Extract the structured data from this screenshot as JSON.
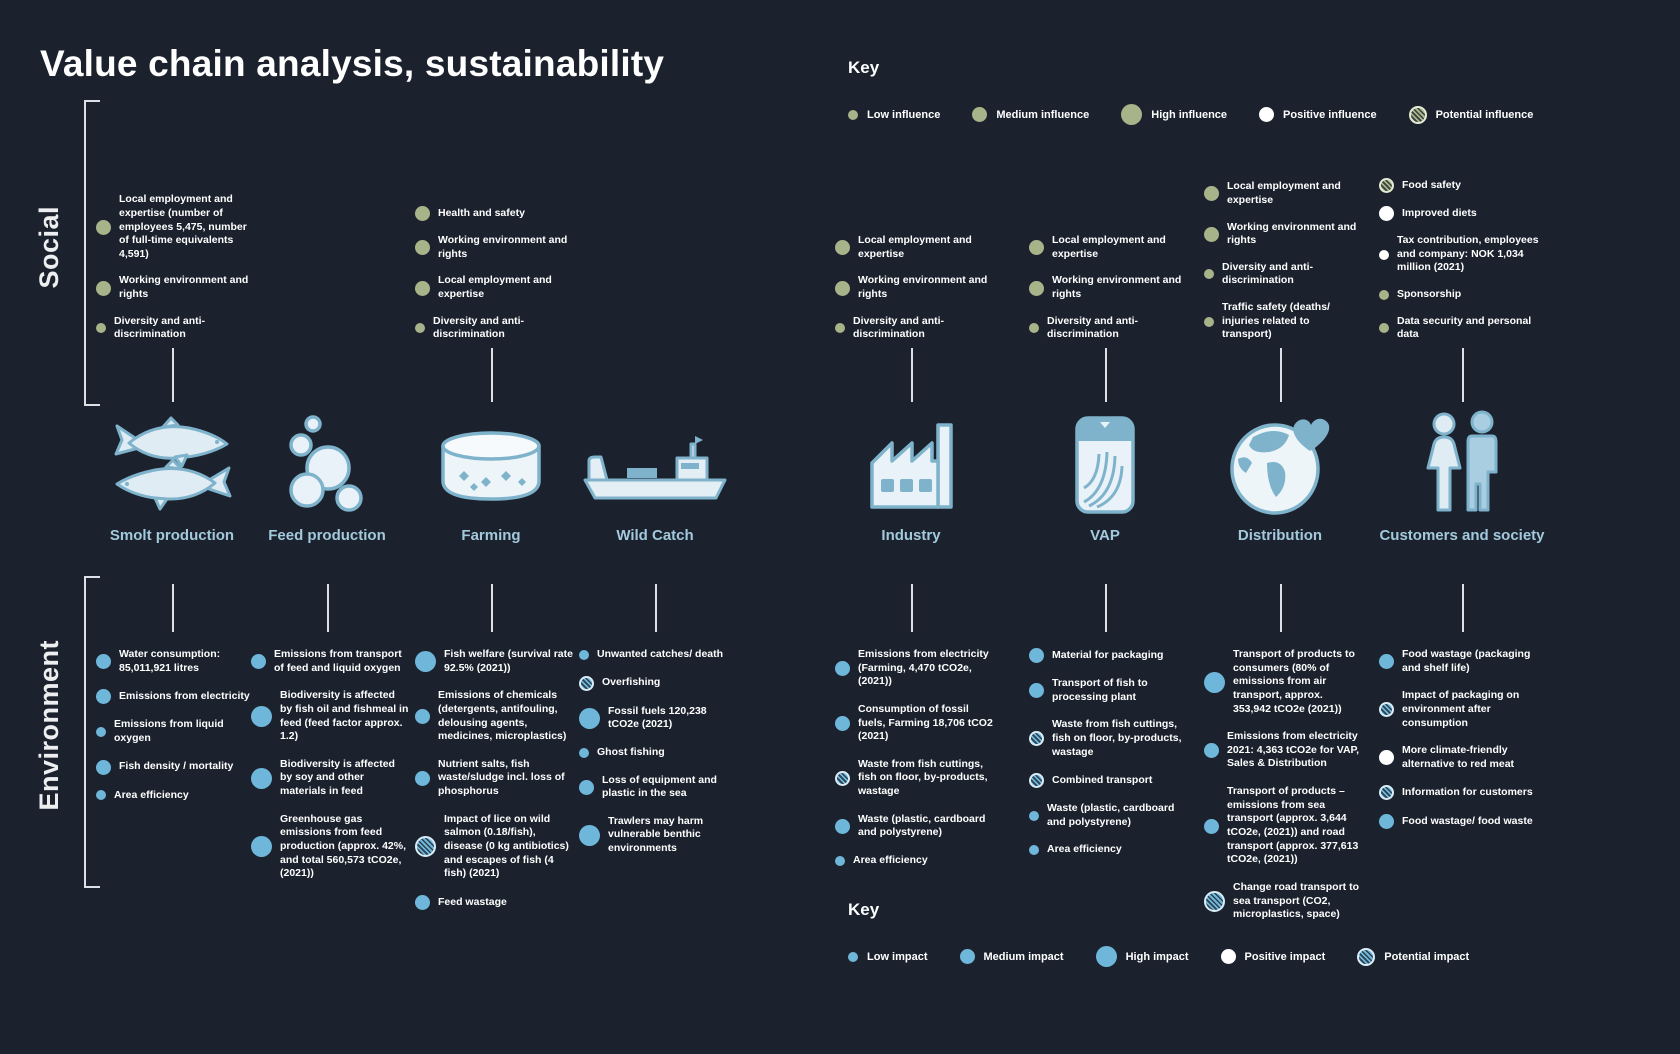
{
  "title": "Value chain analysis, sustainability",
  "rows": {
    "social_label": "Social",
    "environment_label": "Environment"
  },
  "colors": {
    "background": "#1b222d",
    "influence_olive": "#a7b388",
    "impact_blue": "#6fb7da",
    "positive_white": "#ffffff",
    "stage_label_blue": "#a3c9dd",
    "line_white": "#dde1e5",
    "icon_fill": "#e9f2f8",
    "icon_stroke": "#7fb3cc"
  },
  "keys": {
    "influence": {
      "heading": "Key",
      "items": [
        {
          "label": "Low influence",
          "type": "low"
        },
        {
          "label": "Medium influence",
          "type": "medium"
        },
        {
          "label": "High influence",
          "type": "high"
        },
        {
          "label": "Positive influence",
          "type": "positive"
        },
        {
          "label": "Potential influence",
          "type": "potential"
        }
      ]
    },
    "impact": {
      "heading": "Key",
      "items": [
        {
          "label": "Low impact",
          "type": "low"
        },
        {
          "label": "Medium impact",
          "type": "medium"
        },
        {
          "label": "High impact",
          "type": "high"
        },
        {
          "label": "Positive impact",
          "type": "positive"
        },
        {
          "label": "Potential impact",
          "type": "potential"
        }
      ]
    }
  },
  "stages": [
    {
      "name": "Smolt production",
      "icon": "fish-icon",
      "social": [
        {
          "text": "Local employment and expertise (number of employees 5,475, number of full-time equivalents 4,591)",
          "size": "medium"
        },
        {
          "text": "Working environment and rights",
          "size": "medium"
        },
        {
          "text": "Diversity and anti-discrimination",
          "size": "low"
        }
      ],
      "environment": [
        {
          "text": "Water consumption: 85,011,921 litres",
          "size": "medium"
        },
        {
          "text": "Emissions from electricity",
          "size": "medium"
        },
        {
          "text": "Emissions from liquid oxygen",
          "size": "low"
        },
        {
          "text": "Fish density / mortality",
          "size": "medium"
        },
        {
          "text": "Area efficiency",
          "size": "low"
        }
      ]
    },
    {
      "name": "Feed production",
      "icon": "pellets-icon",
      "social": [],
      "environment": [
        {
          "text": "Emissions from transport of feed and liquid oxygen",
          "size": "medium"
        },
        {
          "text": "Biodiversity is affected by fish oil and fishmeal in feed (feed factor approx. 1.2)",
          "size": "high"
        },
        {
          "text": "Biodiversity is affected by soy and other materials in feed",
          "size": "high"
        },
        {
          "text": "Greenhouse gas emissions from feed production (approx. 42%, and total 560,573 tCO2e, (2021))",
          "size": "high"
        }
      ]
    },
    {
      "name": "Farming",
      "icon": "pen-icon",
      "social": [
        {
          "text": "Health and safety",
          "size": "medium"
        },
        {
          "text": "Working environment and rights",
          "size": "medium"
        },
        {
          "text": "Local employment and expertise",
          "size": "medium"
        },
        {
          "text": "Diversity and anti-discrimination",
          "size": "low"
        }
      ],
      "environment": [
        {
          "text": "Fish welfare (survival rate 92.5% (2021))",
          "size": "high"
        },
        {
          "text": "Emissions of chemicals (detergents, antifouling, delousing agents, medicines, microplastics)",
          "size": "medium"
        },
        {
          "text": "Nutrient salts, fish waste/sludge incl. loss of phosphorus",
          "size": "medium"
        },
        {
          "text": "Impact of lice on wild salmon (0.18/fish), disease (0 kg antibiotics) and escapes of fish (4 fish) (2021)",
          "size": "high",
          "kind": "potential"
        },
        {
          "text": "Feed wastage",
          "size": "medium"
        }
      ]
    },
    {
      "name": "Wild Catch",
      "icon": "ship-icon",
      "social": [],
      "environment": [
        {
          "text": "Unwanted catches/ death",
          "size": "low"
        },
        {
          "text": "Overfishing",
          "size": "medium",
          "kind": "potential"
        },
        {
          "text": "Fossil fuels 120,238 tCO2e (2021)",
          "size": "high"
        },
        {
          "text": "Ghost fishing",
          "size": "low"
        },
        {
          "text": "Loss of equipment and plastic in the sea",
          "size": "medium"
        },
        {
          "text": "Trawlers may harm vulnerable benthic environments",
          "size": "high"
        }
      ]
    },
    {
      "name": "Industry",
      "icon": "factory-icon",
      "social": [
        {
          "text": "Local employment and expertise",
          "size": "medium"
        },
        {
          "text": "Working environment and rights",
          "size": "medium"
        },
        {
          "text": "Diversity and anti-discrimination",
          "size": "low"
        }
      ],
      "environment": [
        {
          "text": "Emissions from electricity (Farming, 4,470 tCO2e, (2021))",
          "size": "medium"
        },
        {
          "text": "Consumption of fossil fuels, Farming 18,706 tCO2 (2021)",
          "size": "medium"
        },
        {
          "text": "Waste from fish cuttings, fish on floor, by-products, wastage",
          "size": "medium",
          "kind": "potential"
        },
        {
          "text": "Waste (plastic, cardboard and polystyrene)",
          "size": "medium"
        },
        {
          "text": "Area efficiency",
          "size": "low"
        }
      ]
    },
    {
      "name": "VAP",
      "icon": "package-icon",
      "social": [
        {
          "text": "Local employment and expertise",
          "size": "medium"
        },
        {
          "text": "Working environment and rights",
          "size": "medium"
        },
        {
          "text": "Diversity and anti-discrimination",
          "size": "low"
        }
      ],
      "environment": [
        {
          "text": "Material for packaging",
          "size": "medium"
        },
        {
          "text": "Transport of fish to processing plant",
          "size": "medium"
        },
        {
          "text": "Waste from fish cuttings, fish on floor, by-products, wastage",
          "size": "medium",
          "kind": "potential"
        },
        {
          "text": "Combined transport",
          "size": "medium",
          "kind": "potential"
        },
        {
          "text": "Waste (plastic, cardboard and polystyrene)",
          "size": "low"
        },
        {
          "text": "Area efficiency",
          "size": "low"
        }
      ]
    },
    {
      "name": "Distribution",
      "icon": "globe-heart-icon",
      "social": [
        {
          "text": "Local employment and expertise",
          "size": "medium"
        },
        {
          "text": "Working environment and rights",
          "size": "medium"
        },
        {
          "text": "Diversity and anti-discrimination",
          "size": "low"
        },
        {
          "text": "Traffic safety (deaths/ injuries related to transport)",
          "size": "low"
        }
      ],
      "environment": [
        {
          "text": "Transport of products to consumers (80% of emissions from air transport, approx. 353,942 tCO2e (2021))",
          "size": "high"
        },
        {
          "text": "Emissions from electricity 2021: 4,363 tCO2e for VAP, Sales & Distribution",
          "size": "medium"
        },
        {
          "text": "Transport of products – emissions from sea transport (approx. 3,644 tCO2e, (2021)) and road transport (approx. 377,613 tCO2e, (2021))",
          "size": "medium"
        },
        {
          "text": "Change road transport to sea transport (CO2, microplastics, space)",
          "size": "high",
          "kind": "potential"
        }
      ]
    },
    {
      "name": "Customers and society",
      "icon": "people-icon",
      "social": [
        {
          "text": "Food safety",
          "size": "medium",
          "kind": "potential"
        },
        {
          "text": "Improved diets",
          "size": "medium",
          "kind": "positive"
        },
        {
          "text": "Tax contribution, employees and company: NOK 1,034 million (2021)",
          "size": "low",
          "kind": "positive"
        },
        {
          "text": "Sponsorship",
          "size": "low"
        },
        {
          "text": "Data security and personal data",
          "size": "low"
        }
      ],
      "environment": [
        {
          "text": "Food wastage (packaging and shelf life)",
          "size": "medium"
        },
        {
          "text": "Impact of packaging on environment after consumption",
          "size": "medium",
          "kind": "potential"
        },
        {
          "text": "More climate-friendly alternative to red meat",
          "size": "medium",
          "kind": "positive"
        },
        {
          "text": "Information for customers",
          "size": "medium",
          "kind": "potential"
        },
        {
          "text": "Food wastage/ food waste",
          "size": "medium"
        }
      ]
    }
  ]
}
